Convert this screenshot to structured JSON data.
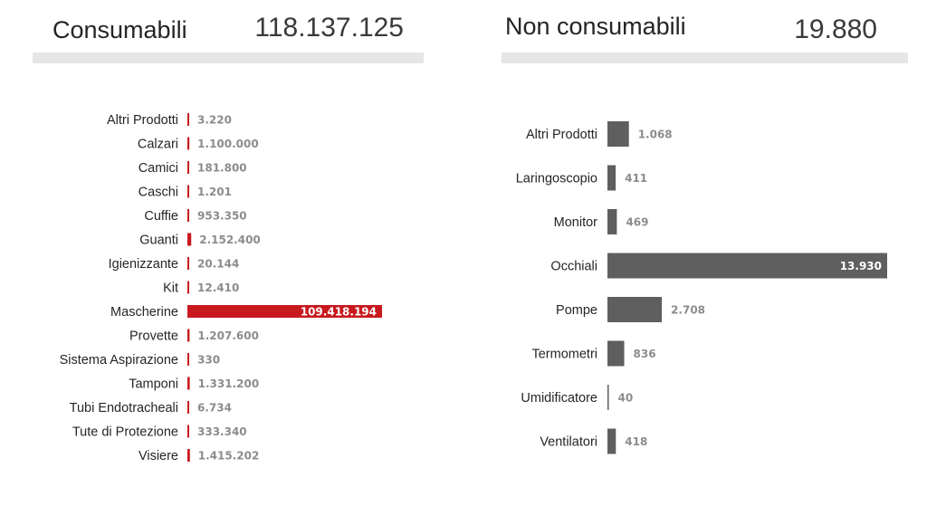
{
  "chart_data": [
    {
      "type": "bar",
      "orientation": "horizontal",
      "title": "Consumabili",
      "total": "118.137.125",
      "color": "#c8191e",
      "categories": [
        "Altri Prodotti",
        "Calzari",
        "Camici",
        "Caschi",
        "Cuffie",
        "Guanti",
        "Igienizzante",
        "Kit",
        "Mascherine",
        "Provette",
        "Sistema Aspirazione",
        "Tamponi",
        "Tubi Endotracheali",
        "Tute di Protezione",
        "Visiere"
      ],
      "values": [
        3220,
        1100000,
        181800,
        1201,
        953350,
        2152400,
        20144,
        12410,
        109418194,
        1207600,
        330,
        1331200,
        6734,
        333340,
        1415202
      ],
      "value_labels": [
        "3.220",
        "1.100.000",
        "181.800",
        "1.201",
        "953.350",
        "2.152.400",
        "20.144",
        "12.410",
        "109.418.194",
        "1.207.600",
        "330",
        "1.331.200",
        "6.734",
        "333.340",
        "1.415.202"
      ],
      "xlim": [
        0,
        109418194
      ]
    },
    {
      "type": "bar",
      "orientation": "horizontal",
      "title": "Non consumabili",
      "total": "19.880",
      "color": "#5f5f5f",
      "categories": [
        "Altri Prodotti",
        "Laringoscopio",
        "Monitor",
        "Occhiali",
        "Pompe",
        "Termometri",
        "Umidificatore",
        "Ventilatori"
      ],
      "values": [
        1068,
        411,
        469,
        13930,
        2708,
        836,
        40,
        418
      ],
      "value_labels": [
        "1.068",
        "411",
        "469",
        "13.930",
        "2.708",
        "836",
        "40",
        "418"
      ],
      "xlim": [
        0,
        13930
      ]
    }
  ]
}
